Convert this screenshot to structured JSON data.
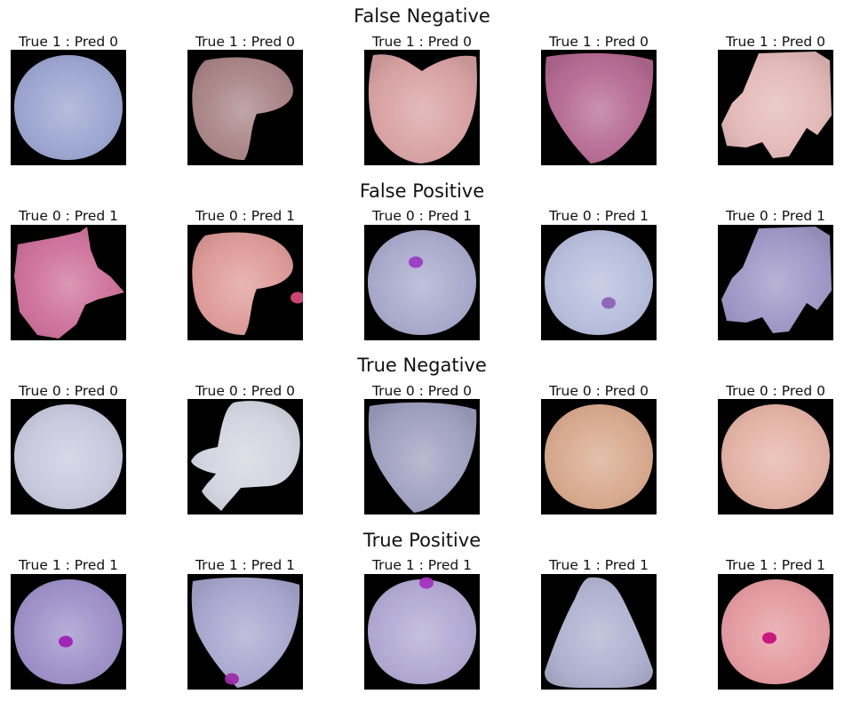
{
  "sections": [
    {
      "title": "False Negative",
      "cells": [
        {
          "label": "True 1 : Pred 0",
          "shape": "circle",
          "color": "#9aa4d0",
          "spots": []
        },
        {
          "label": "True 1 : Pred 0",
          "shape": "lobed",
          "color": "#a98385",
          "spots": []
        },
        {
          "label": "True 1 : Pred 0",
          "shape": "heart",
          "color": "#d9a1a2",
          "spots": []
        },
        {
          "label": "True 1 : Pred 0",
          "shape": "shield",
          "color": "#b56892",
          "spots": []
        },
        {
          "label": "True 1 : Pred 0",
          "shape": "irregular",
          "color": "#e4b8b8",
          "spots": []
        }
      ]
    },
    {
      "title": "False Positive",
      "cells": [
        {
          "label": "True 0 : Pred 1",
          "shape": "ragged",
          "color": "#cd6e9a",
          "spots": []
        },
        {
          "label": "True 0 : Pred 1",
          "shape": "lobed",
          "color": "#de9a98",
          "spots": [
            "#d34a75"
          ]
        },
        {
          "label": "True 0 : Pred 1",
          "shape": "circle",
          "color": "#a8a9cc",
          "spots": [
            "#9c3cc2"
          ]
        },
        {
          "label": "True 0 : Pred 1",
          "shape": "circle",
          "color": "#b6bddc",
          "spots": [
            "#8c62b6"
          ]
        },
        {
          "label": "True 0 : Pred 1",
          "shape": "irregular",
          "color": "#9e96c6",
          "spots": []
        }
      ]
    },
    {
      "title": "True Negative",
      "cells": [
        {
          "label": "True 0 : Pred 0",
          "shape": "circle",
          "color": "#c8c8de",
          "spots": []
        },
        {
          "label": "True 0 : Pred 0",
          "shape": "splash",
          "color": "#d2d3df",
          "spots": []
        },
        {
          "label": "True 0 : Pred 0",
          "shape": "shield",
          "color": "#9f9fc0",
          "spots": []
        },
        {
          "label": "True 0 : Pred 0",
          "shape": "circle",
          "color": "#d8a88c",
          "spots": []
        },
        {
          "label": "True 0 : Pred 0",
          "shape": "circle",
          "color": "#e5b1a5",
          "spots": []
        }
      ]
    },
    {
      "title": "True Positive",
      "cells": [
        {
          "label": "True 1 : Pred 1",
          "shape": "circle",
          "color": "#9d8fc9",
          "spots": [
            "#a11fb4"
          ]
        },
        {
          "label": "True 1 : Pred 1",
          "shape": "shield",
          "color": "#a8a6cf",
          "spots": [
            "#9a2ca7"
          ]
        },
        {
          "label": "True 1 : Pred 1",
          "shape": "circle",
          "color": "#b0a8d2",
          "spots": [
            "#a62fc0"
          ]
        },
        {
          "label": "True 1 : Pred 1",
          "shape": "bell",
          "color": "#aeb0d0",
          "spots": []
        },
        {
          "label": "True 1 : Pred 1",
          "shape": "circle",
          "color": "#e4999f",
          "spots": [
            "#c7117c"
          ]
        }
      ]
    }
  ]
}
